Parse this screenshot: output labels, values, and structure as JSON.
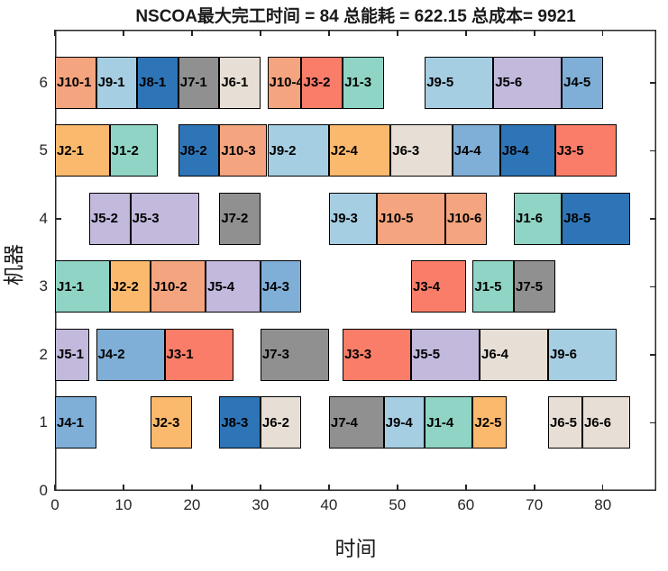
{
  "title": "NSCOA最大完工时间 = 84 总能耗 = 622.15 总成本= 9921",
  "stats": {
    "algorithm": "NSCOA",
    "makespan": 84,
    "total_energy": 622.15,
    "total_cost": 9921
  },
  "chart_data": {
    "type": "bar",
    "subtype": "gantt",
    "title": "NSCOA最大完工时间 = 84 总能耗 = 622.15 总成本= 9921",
    "xlabel": "时间",
    "ylabel": "机器",
    "xlim": [
      0,
      87.8
    ],
    "ylim": [
      0,
      6.78
    ],
    "x_ticks": [
      0,
      10,
      20,
      30,
      40,
      50,
      60,
      70,
      80
    ],
    "y_ticks": [
      0,
      1,
      2,
      3,
      4,
      5,
      6
    ],
    "grid": false,
    "bar_height_units": 0.77,
    "job_colors": {
      "J1": "#8FD4C4",
      "J2": "#FBB96D",
      "J3": "#F97D68",
      "J4": "#7FAED6",
      "J5": "#C2B9DD",
      "J6": "#E7DFD5",
      "J7": "#909090",
      "J8": "#2E75B7",
      "J9": "#A6CEE2",
      "J10": "#F4A47F"
    },
    "tasks": [
      {
        "machine": 6,
        "job": "J10",
        "label": "J10-1",
        "start": 0,
        "end": 6
      },
      {
        "machine": 6,
        "job": "J9",
        "label": "J9-1",
        "start": 6,
        "end": 12
      },
      {
        "machine": 6,
        "job": "J8",
        "label": "J8-1",
        "start": 12,
        "end": 18
      },
      {
        "machine": 6,
        "job": "J7",
        "label": "J7-1",
        "start": 18,
        "end": 24
      },
      {
        "machine": 6,
        "job": "J6",
        "label": "J6-1",
        "start": 24,
        "end": 30
      },
      {
        "machine": 6,
        "job": "J10",
        "label": "J10-4",
        "start": 31,
        "end": 36
      },
      {
        "machine": 6,
        "job": "J3",
        "label": "J3-2",
        "start": 36,
        "end": 42
      },
      {
        "machine": 6,
        "job": "J1",
        "label": "J1-3",
        "start": 42,
        "end": 48
      },
      {
        "machine": 6,
        "job": "J9",
        "label": "J9-5",
        "start": 54,
        "end": 64
      },
      {
        "machine": 6,
        "job": "J5",
        "label": "J5-6",
        "start": 64,
        "end": 74
      },
      {
        "machine": 6,
        "job": "J4",
        "label": "J4-5",
        "start": 74,
        "end": 80
      },
      {
        "machine": 5,
        "job": "J2",
        "label": "J2-1",
        "start": 0,
        "end": 8
      },
      {
        "machine": 5,
        "job": "J1",
        "label": "J1-2",
        "start": 8,
        "end": 15
      },
      {
        "machine": 5,
        "job": "J8",
        "label": "J8-2",
        "start": 18,
        "end": 24
      },
      {
        "machine": 5,
        "job": "J10",
        "label": "J10-3",
        "start": 24,
        "end": 31
      },
      {
        "machine": 5,
        "job": "J9",
        "label": "J9-2",
        "start": 31,
        "end": 40
      },
      {
        "machine": 5,
        "job": "J2",
        "label": "J2-4",
        "start": 40,
        "end": 49
      },
      {
        "machine": 5,
        "job": "J6",
        "label": "J6-3",
        "start": 49,
        "end": 58
      },
      {
        "machine": 5,
        "job": "J4",
        "label": "J4-4",
        "start": 58,
        "end": 65
      },
      {
        "machine": 5,
        "job": "J8",
        "label": "J8-4",
        "start": 65,
        "end": 73
      },
      {
        "machine": 5,
        "job": "J3",
        "label": "J3-5",
        "start": 73,
        "end": 82
      },
      {
        "machine": 4,
        "job": "J5",
        "label": "J5-2",
        "start": 5,
        "end": 11
      },
      {
        "machine": 4,
        "job": "J5",
        "label": "J5-3",
        "start": 11,
        "end": 21
      },
      {
        "machine": 4,
        "job": "J7",
        "label": "J7-2",
        "start": 24,
        "end": 30
      },
      {
        "machine": 4,
        "job": "J9",
        "label": "J9-3",
        "start": 40,
        "end": 47
      },
      {
        "machine": 4,
        "job": "J10",
        "label": "J10-5",
        "start": 47,
        "end": 57
      },
      {
        "machine": 4,
        "job": "J10",
        "label": "J10-6",
        "start": 57,
        "end": 63
      },
      {
        "machine": 4,
        "job": "J1",
        "label": "J1-6",
        "start": 67,
        "end": 74
      },
      {
        "machine": 4,
        "job": "J8",
        "label": "J8-5",
        "start": 74,
        "end": 84
      },
      {
        "machine": 3,
        "job": "J1",
        "label": "J1-1",
        "start": 0,
        "end": 8
      },
      {
        "machine": 3,
        "job": "J2",
        "label": "J2-2",
        "start": 8,
        "end": 14
      },
      {
        "machine": 3,
        "job": "J10",
        "label": "J10-2",
        "start": 14,
        "end": 22
      },
      {
        "machine": 3,
        "job": "J5",
        "label": "J5-4",
        "start": 22,
        "end": 30
      },
      {
        "machine": 3,
        "job": "J4",
        "label": "J4-3",
        "start": 30,
        "end": 36
      },
      {
        "machine": 3,
        "job": "J3",
        "label": "J3-4",
        "start": 52,
        "end": 60
      },
      {
        "machine": 3,
        "job": "J1",
        "label": "J1-5",
        "start": 61,
        "end": 67
      },
      {
        "machine": 3,
        "job": "J7",
        "label": "J7-5",
        "start": 67,
        "end": 73
      },
      {
        "machine": 2,
        "job": "J5",
        "label": "J5-1",
        "start": 0,
        "end": 5
      },
      {
        "machine": 2,
        "job": "J4",
        "label": "J4-2",
        "start": 6,
        "end": 16
      },
      {
        "machine": 2,
        "job": "J3",
        "label": "J3-1",
        "start": 16,
        "end": 26
      },
      {
        "machine": 2,
        "job": "J7",
        "label": "J7-3",
        "start": 30,
        "end": 40
      },
      {
        "machine": 2,
        "job": "J3",
        "label": "J3-3",
        "start": 42,
        "end": 52
      },
      {
        "machine": 2,
        "job": "J5",
        "label": "J5-5",
        "start": 52,
        "end": 62
      },
      {
        "machine": 2,
        "job": "J6",
        "label": "J6-4",
        "start": 62,
        "end": 72
      },
      {
        "machine": 2,
        "job": "J9",
        "label": "J9-6",
        "start": 72,
        "end": 82
      },
      {
        "machine": 1,
        "job": "J4",
        "label": "J4-1",
        "start": 0,
        "end": 6
      },
      {
        "machine": 1,
        "job": "J2",
        "label": "J2-3",
        "start": 14,
        "end": 20
      },
      {
        "machine": 1,
        "job": "J8",
        "label": "J8-3",
        "start": 24,
        "end": 30
      },
      {
        "machine": 1,
        "job": "J6",
        "label": "J6-2",
        "start": 30,
        "end": 36
      },
      {
        "machine": 1,
        "job": "J7",
        "label": "J7-4",
        "start": 40,
        "end": 48
      },
      {
        "machine": 1,
        "job": "J9",
        "label": "J9-4",
        "start": 48,
        "end": 54
      },
      {
        "machine": 1,
        "job": "J1",
        "label": "J1-4",
        "start": 54,
        "end": 61
      },
      {
        "machine": 1,
        "job": "J2",
        "label": "J2-5",
        "start": 61,
        "end": 66
      },
      {
        "machine": 1,
        "job": "J6",
        "label": "J6-5",
        "start": 72,
        "end": 77
      },
      {
        "machine": 1,
        "job": "J6",
        "label": "J6-6",
        "start": 77,
        "end": 84
      }
    ]
  }
}
